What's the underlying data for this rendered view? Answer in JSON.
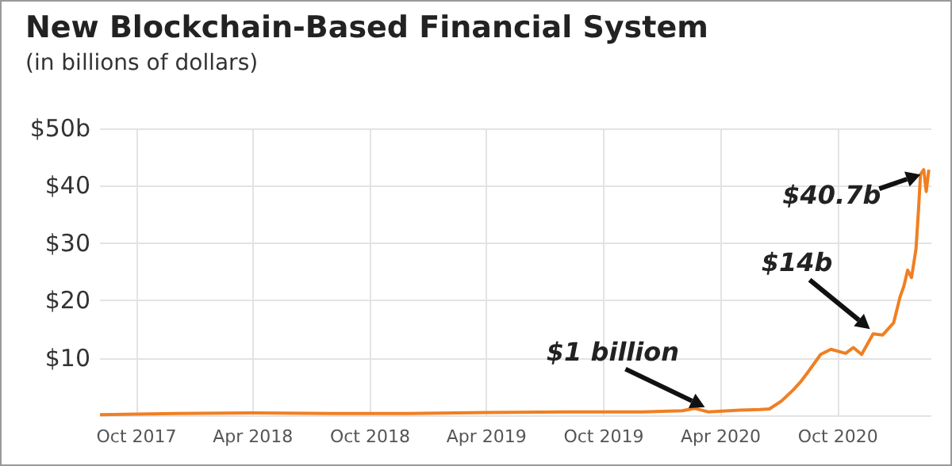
{
  "chart_data": {
    "type": "line",
    "title": "New Blockchain-Based Financial System",
    "subtitle": "(in billions of dollars)",
    "x": [
      "2017-08-05",
      "2017-12-01",
      "2018-04-01",
      "2018-08-01",
      "2018-12-01",
      "2019-04-01",
      "2019-08-01",
      "2019-12-01",
      "2020-02-01",
      "2020-02-20",
      "2020-03-12",
      "2020-05-01",
      "2020-06-01",
      "2020-06-16",
      "2020-07-05",
      "2020-07-23",
      "2020-08-05",
      "2020-08-17",
      "2020-09-04",
      "2020-09-20",
      "2020-10-13",
      "2020-10-25",
      "2020-11-07",
      "2020-11-25",
      "2020-12-10",
      "2020-12-27",
      "2021-01-06",
      "2021-01-12",
      "2021-01-18",
      "2021-01-24",
      "2021-01-31",
      "2021-02-04",
      "2021-02-07",
      "2021-02-12",
      "2021-02-16",
      "2021-02-20"
    ],
    "series": [
      {
        "color": "#f07f22",
        "values": [
          0.1,
          0.3,
          0.4,
          0.3,
          0.3,
          0.5,
          0.6,
          0.6,
          0.8,
          1.2,
          0.6,
          0.9,
          1.0,
          1.1,
          2.5,
          4.4,
          6.0,
          7.8,
          10.6,
          11.5,
          10.8,
          11.8,
          10.6,
          14.2,
          14.0,
          16.1,
          20.6,
          22.5,
          25.3,
          24.0,
          29.0,
          36.0,
          42.0,
          42.8,
          39.0,
          42.8
        ]
      }
    ],
    "xlim": [
      "2017-08-05",
      "2021-02-24"
    ],
    "xticks": [
      {
        "value": "2017-10-01",
        "label": "Oct 2017"
      },
      {
        "value": "2018-04-01",
        "label": "Apr 2018"
      },
      {
        "value": "2018-10-01",
        "label": "Oct 2018"
      },
      {
        "value": "2019-04-01",
        "label": "Apr 2019"
      },
      {
        "value": "2019-10-01",
        "label": "Oct 2019"
      },
      {
        "value": "2020-04-01",
        "label": "Apr 2020"
      },
      {
        "value": "2020-10-01",
        "label": "Oct 2020"
      }
    ],
    "ylim": [
      0,
      50
    ],
    "yticks": [
      {
        "value": 0,
        "label": null
      },
      {
        "value": 10,
        "label": "$10"
      },
      {
        "value": 20,
        "label": "$20"
      },
      {
        "value": 30,
        "label": "$30"
      },
      {
        "value": 40,
        "label": "$40"
      },
      {
        "value": 50,
        "label": "$50b"
      }
    ],
    "annotations": [
      {
        "text": "$1 billion",
        "x": "2020-03-12",
        "y": 0.6
      },
      {
        "text": "$14b",
        "x": "2020-11-25",
        "y": 14.2
      },
      {
        "text": "$40.7b",
        "x": "2021-02-12",
        "y": 42.8
      }
    ],
    "grid": true,
    "marker": "none",
    "line_style": "solid"
  }
}
